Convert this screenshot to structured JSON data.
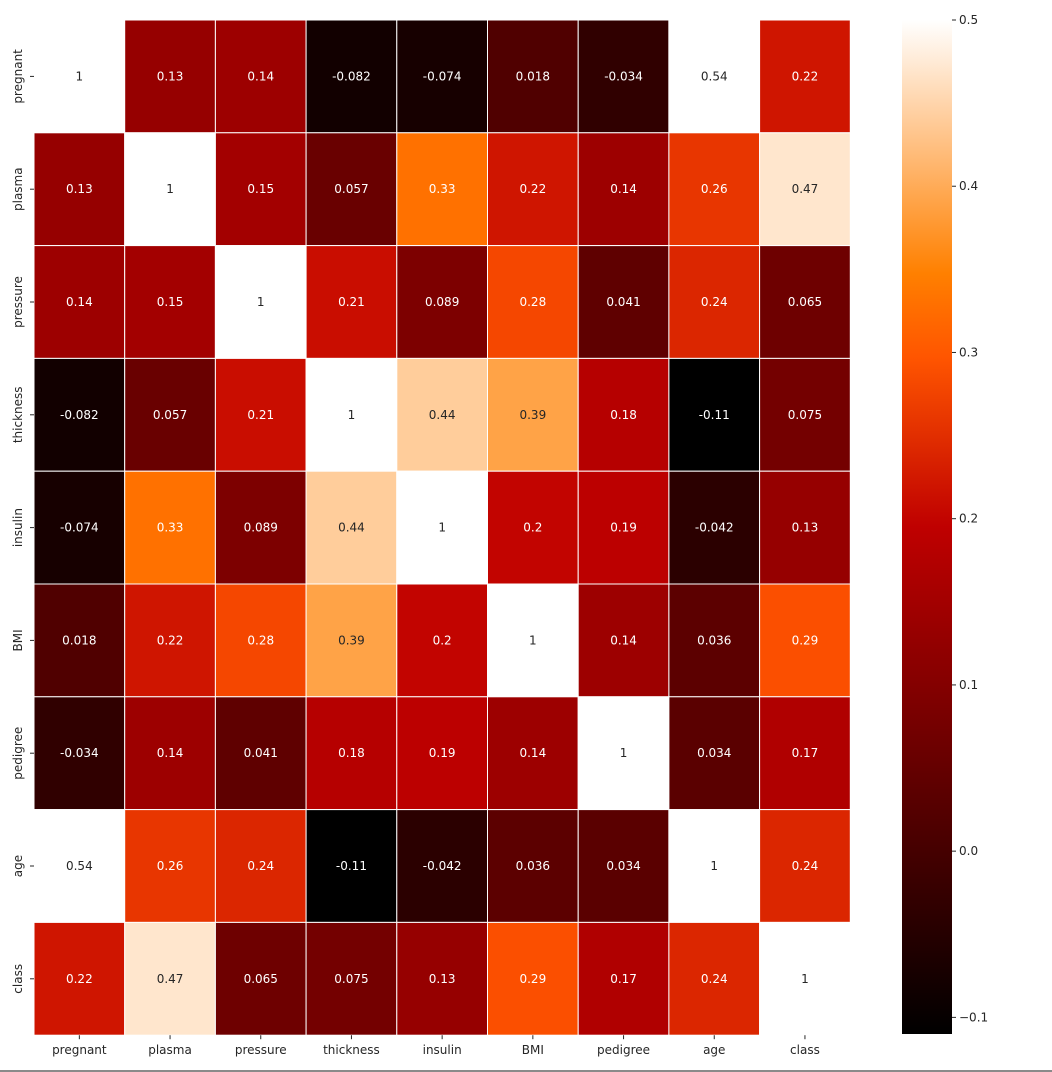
{
  "chart_data": {
    "type": "heatmap",
    "variables": [
      "pregnant",
      "plasma",
      "pressure",
      "thickness",
      "insulin",
      "BMI",
      "pedigree",
      "age",
      "class"
    ],
    "matrix": [
      [
        1,
        0.13,
        0.14,
        -0.082,
        -0.074,
        0.018,
        -0.034,
        0.54,
        0.22
      ],
      [
        0.13,
        1,
        0.15,
        0.057,
        0.33,
        0.22,
        0.14,
        0.26,
        0.47
      ],
      [
        0.14,
        0.15,
        1,
        0.21,
        0.089,
        0.28,
        0.041,
        0.24,
        0.065
      ],
      [
        -0.082,
        0.057,
        0.21,
        1,
        0.44,
        0.39,
        0.18,
        -0.11,
        0.075
      ],
      [
        -0.074,
        0.33,
        0.089,
        0.44,
        1,
        0.2,
        0.19,
        -0.042,
        0.13
      ],
      [
        0.018,
        0.22,
        0.28,
        0.39,
        0.2,
        1,
        0.14,
        0.036,
        0.29
      ],
      [
        -0.034,
        0.14,
        0.041,
        0.18,
        0.19,
        0.14,
        1,
        0.034,
        0.17
      ],
      [
        0.54,
        0.26,
        0.24,
        -0.11,
        -0.042,
        0.036,
        0.034,
        1,
        0.24
      ],
      [
        0.22,
        0.47,
        0.065,
        0.075,
        0.13,
        0.29,
        0.17,
        0.24,
        1
      ]
    ],
    "annotations": [
      [
        "1",
        "0.13",
        "0.14",
        "-0.082",
        "-0.074",
        "0.018",
        "-0.034",
        "0.54",
        "0.22"
      ],
      [
        "0.13",
        "1",
        "0.15",
        "0.057",
        "0.33",
        "0.22",
        "0.14",
        "0.26",
        "0.47"
      ],
      [
        "0.14",
        "0.15",
        "1",
        "0.21",
        "0.089",
        "0.28",
        "0.041",
        "0.24",
        "0.065"
      ],
      [
        "-0.082",
        "0.057",
        "0.21",
        "1",
        "0.44",
        "0.39",
        "0.18",
        "-0.11",
        "0.075"
      ],
      [
        "-0.074",
        "0.33",
        "0.089",
        "0.44",
        "1",
        "0.2",
        "0.19",
        "-0.042",
        "0.13"
      ],
      [
        "0.018",
        "0.22",
        "0.28",
        "0.39",
        "0.2",
        "1",
        "0.14",
        "0.036",
        "0.29"
      ],
      [
        "-0.034",
        "0.14",
        "0.041",
        "0.18",
        "0.19",
        "0.14",
        "1",
        "0.034",
        "0.17"
      ],
      [
        "0.54",
        "0.26",
        "0.24",
        "-0.11",
        "-0.042",
        "0.036",
        "0.034",
        "1",
        "0.24"
      ],
      [
        "0.22",
        "0.47",
        "0.065",
        "0.075",
        "0.13",
        "0.29",
        "0.17",
        "0.24",
        "1"
      ]
    ],
    "colormap": "gist_heat",
    "vmin": -0.11,
    "vmax": 0.5,
    "colorbar_ticks": [
      -0.1,
      0.0,
      0.1,
      0.2,
      0.3,
      0.4,
      0.5
    ],
    "colorbar_tick_labels": [
      "−0.1",
      "0.0",
      "0.1",
      "0.2",
      "0.3",
      "0.4",
      "0.5"
    ],
    "cell_border_color": "#ffffff",
    "light_text_color": "#ffffff",
    "dark_text_color": "#262626",
    "title": "",
    "xlabel": "",
    "ylabel": ""
  }
}
